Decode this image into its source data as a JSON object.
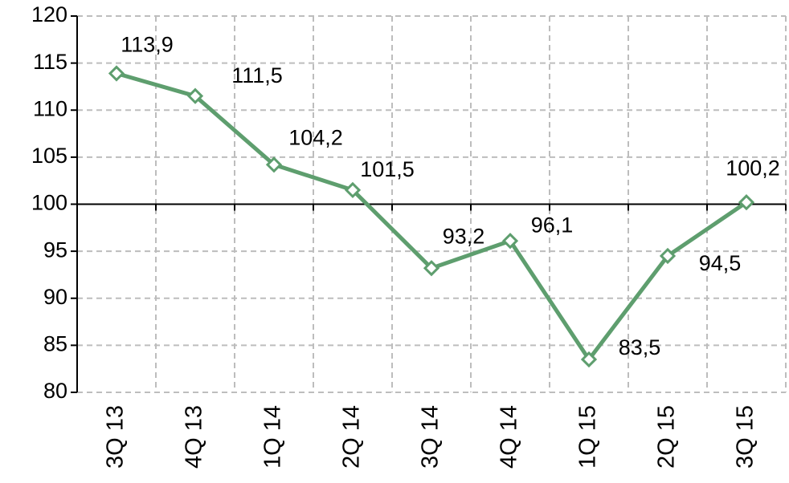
{
  "chart_data": {
    "type": "line",
    "categories": [
      "3Q 13",
      "4Q 13",
      "1Q 14",
      "2Q 14",
      "3Q 14",
      "4Q 14",
      "1Q 15",
      "2Q 15",
      "3Q 15"
    ],
    "series": [
      {
        "name": null,
        "color": "#5e9e6e",
        "values": [
          113.9,
          111.5,
          104.2,
          101.5,
          93.2,
          96.1,
          83.5,
          94.5,
          100.2
        ],
        "value_labels": [
          "113,9",
          "111,5",
          "104,2",
          "101,5",
          "93,2",
          "96,1",
          "83,5",
          "94,5",
          "100,2"
        ]
      }
    ],
    "ylim": [
      80,
      120
    ],
    "yticks": [
      80,
      85,
      90,
      95,
      100,
      105,
      110,
      115,
      120
    ],
    "x_axis_crossing": 100,
    "grid": true
  }
}
